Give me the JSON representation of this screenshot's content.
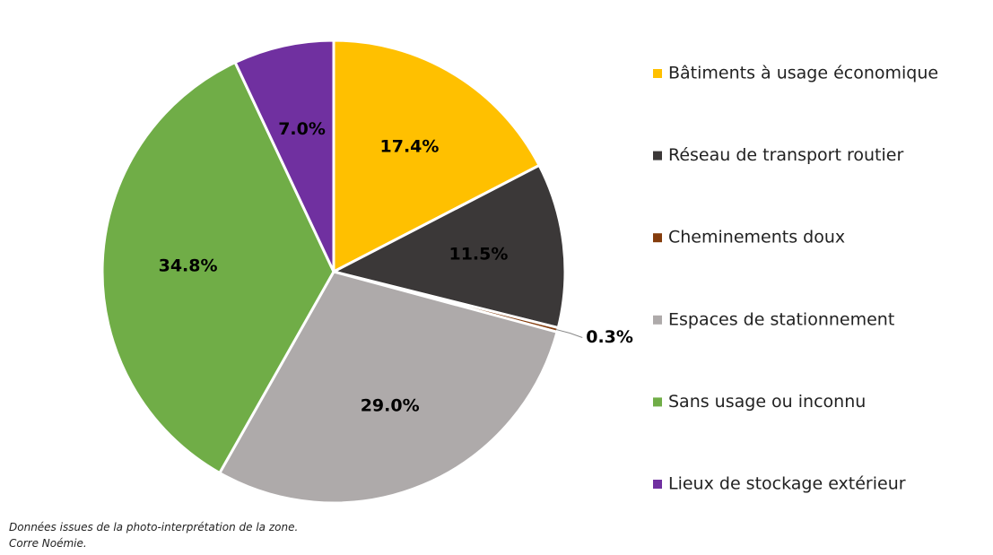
{
  "chart_data": {
    "type": "pie",
    "categories": [
      "Bâtiments à usage économique",
      "Réseau de transport routier",
      "Cheminements doux",
      "Espaces de stationnement",
      "Sans usage ou inconnu",
      "Lieux de stockage extérieur"
    ],
    "values": [
      17.4,
      11.5,
      0.3,
      29.0,
      34.8,
      7.0
    ],
    "value_labels": [
      "17.4%",
      "11.5%",
      "0.3%",
      "29.0%",
      "34.8%",
      "7.0%"
    ],
    "colors": [
      "#FFC000",
      "#3B3838",
      "#843C0C",
      "#AEAAAA",
      "#70AD47",
      "#7030A0"
    ],
    "legend": "right",
    "notes": [
      "Données issues de la photo-interprétation de la zone.",
      "Corre Noémie."
    ]
  }
}
